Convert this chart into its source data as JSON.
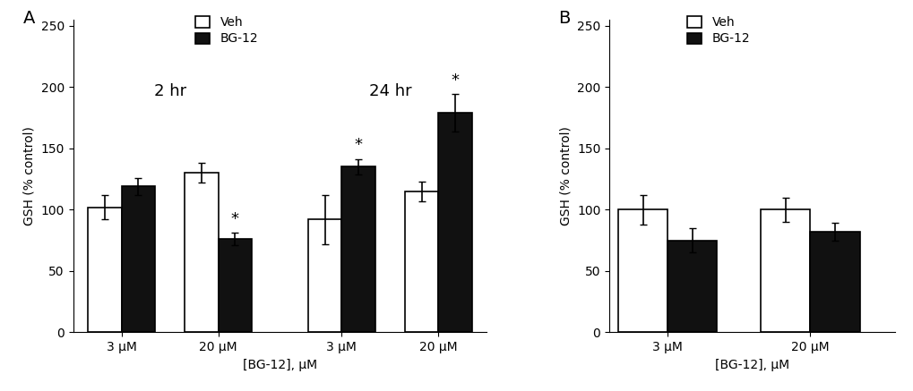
{
  "panel_A": {
    "groups": [
      {
        "label": "3 μM",
        "time": "2 hr",
        "veh_val": 102,
        "veh_err": 10,
        "bg_val": 119,
        "bg_err": 7,
        "bg_sig": false
      },
      {
        "label": "20 μM",
        "time": "2 hr",
        "veh_val": 130,
        "veh_err": 8,
        "bg_val": 76,
        "bg_err": 5,
        "bg_sig": true
      },
      {
        "label": "3 μM",
        "time": "24 hr",
        "veh_val": 92,
        "veh_err": 20,
        "bg_val": 135,
        "bg_err": 6,
        "bg_sig": true
      },
      {
        "label": "20 μM",
        "time": "24 hr",
        "veh_val": 115,
        "veh_err": 8,
        "bg_val": 179,
        "bg_err": 15,
        "bg_sig": true
      }
    ],
    "xlabel": "[BG-12], μM",
    "ylabel": "GSH (% control)",
    "ylim": [
      0,
      255
    ],
    "yticks": [
      0,
      50,
      100,
      150,
      200,
      250
    ],
    "panel_label": "A",
    "time_label_2hr": "2 hr",
    "time_label_24hr": "24 hr"
  },
  "panel_B": {
    "groups": [
      {
        "label": "3 μM",
        "veh_val": 100,
        "veh_err": 12,
        "bg_val": 75,
        "bg_err": 10
      },
      {
        "label": "20 μM",
        "veh_val": 100,
        "veh_err": 10,
        "bg_val": 82,
        "bg_err": 7
      }
    ],
    "xlabel": "[BG-12], μM",
    "ylabel": "GSH (% control)",
    "ylim": [
      0,
      255
    ],
    "yticks": [
      0,
      50,
      100,
      150,
      200,
      250
    ],
    "panel_label": "B"
  },
  "bar_width": 0.38,
  "colors": {
    "veh": "#ffffff",
    "bg12": "#111111"
  },
  "edgecolor": "#000000",
  "legend_labels": [
    "Veh",
    "BG-12"
  ],
  "font_size": 10,
  "time_label_fontsize": 13,
  "star_fontsize": 13
}
